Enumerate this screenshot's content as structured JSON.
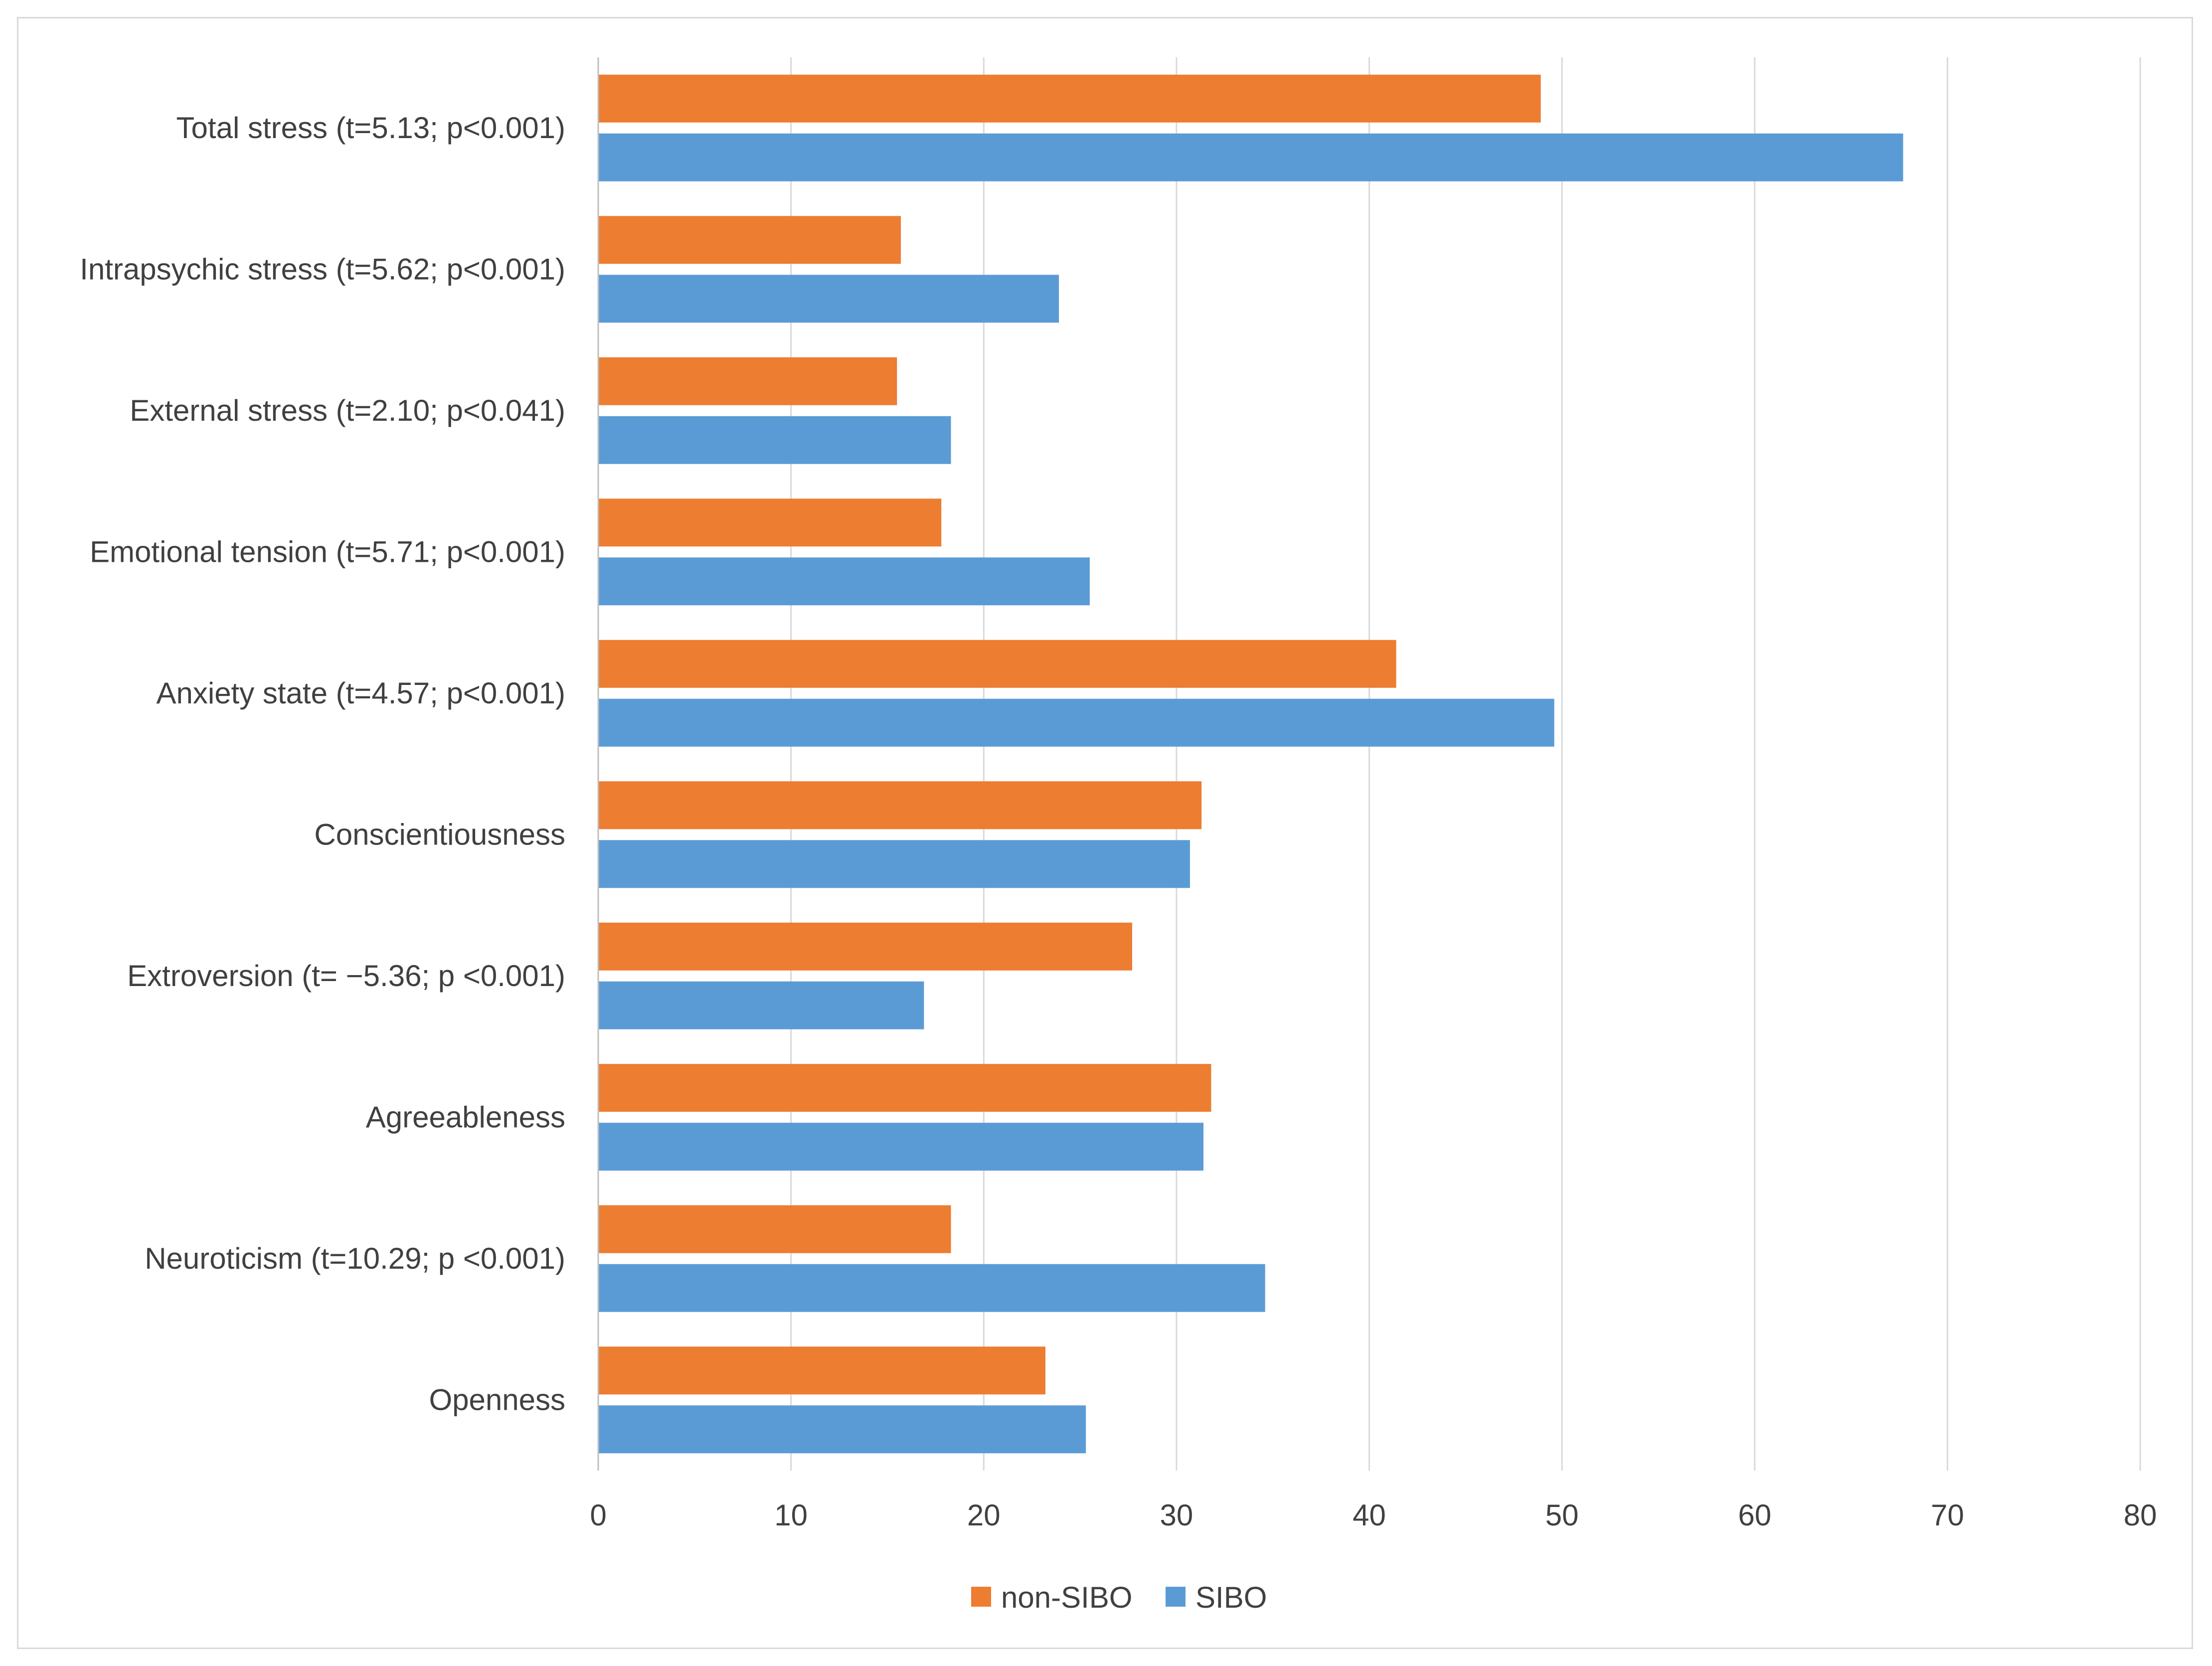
{
  "chart_data": {
    "type": "bar",
    "orientation": "horizontal",
    "categories": [
      "Total stress (t=5.13; p<0.001)",
      "Intrapsychic stress (t=5.62; p<0.001)",
      "External stress (t=2.10; p<0.041)",
      "Emotional tension (t=5.71; p<0.001)",
      "Anxiety state (t=4.57; p<0.001)",
      "Conscientiousness",
      "Extroversion (t= −5.36;  p <0.001)",
      "Agreeableness",
      "Neuroticism (t=10.29;  p <0.001)",
      "Openness"
    ],
    "series": [
      {
        "name": "non-SIBO",
        "color": "#ed7d31",
        "values": [
          48.9,
          15.7,
          15.5,
          17.8,
          41.4,
          31.3,
          27.7,
          31.8,
          18.3,
          23.2
        ]
      },
      {
        "name": "SIBO",
        "color": "#5b9bd5",
        "values": [
          67.7,
          23.9,
          18.3,
          25.5,
          49.6,
          30.7,
          16.9,
          31.4,
          34.6,
          25.3
        ]
      }
    ],
    "xlim": [
      0,
      80
    ],
    "xticks": [
      "0",
      "10",
      "20",
      "30",
      "40",
      "50",
      "60",
      "70",
      "80"
    ],
    "xticks_values": [
      0,
      10,
      20,
      30,
      40,
      50,
      60,
      70,
      80
    ],
    "grid": true,
    "legend_position": "bottom",
    "title": "",
    "xlabel": "",
    "ylabel": ""
  }
}
